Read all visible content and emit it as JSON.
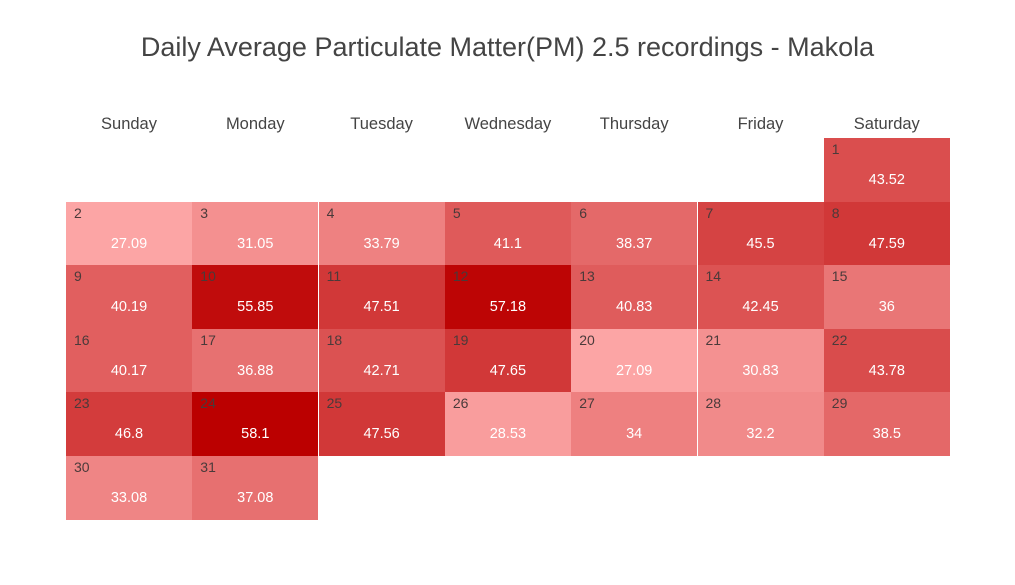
{
  "chart_data": {
    "type": "heatmap",
    "title": "Daily Average Particulate Matter(PM) 2.5 recordings - Makola",
    "weekdays": [
      "Sunday",
      "Monday",
      "Tuesday",
      "Wednesday",
      "Thursday",
      "Friday",
      "Saturday"
    ],
    "first_weekday_index": 6,
    "days": [
      1,
      2,
      3,
      4,
      5,
      6,
      7,
      8,
      9,
      10,
      11,
      12,
      13,
      14,
      15,
      16,
      17,
      18,
      19,
      20,
      21,
      22,
      23,
      24,
      25,
      26,
      27,
      28,
      29,
      30,
      31
    ],
    "values": [
      43.52,
      27.09,
      31.05,
      33.79,
      41.1,
      38.37,
      45.5,
      47.59,
      40.19,
      55.85,
      47.51,
      57.18,
      40.83,
      42.45,
      36,
      40.17,
      36.88,
      42.71,
      47.65,
      27.09,
      30.83,
      43.78,
      46.8,
      58.1,
      47.56,
      28.53,
      34,
      32.2,
      38.5,
      33.08,
      37.08
    ],
    "color_scale": {
      "low": "#fca5a5",
      "high": "#bb0000"
    }
  }
}
